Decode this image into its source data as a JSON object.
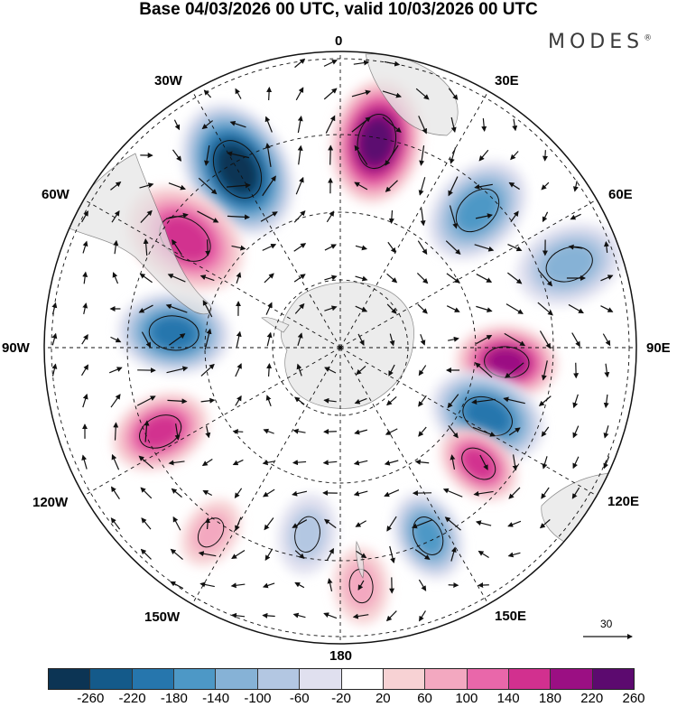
{
  "title": "Base 04/03/2026 00 UTC, valid 10/03/2026 00 UTC",
  "brand": "MODES",
  "brand_mark": "®",
  "map": {
    "projection": "south-polar-stereographic",
    "longitude_labels": {
      "lon_0": "0",
      "lon_30e": "30E",
      "lon_60e": "60E",
      "lon_90e": "90E",
      "lon_120e": "120E",
      "lon_150e": "150E",
      "lon_180": "180",
      "lon_150w": "150W",
      "lon_120w": "120W",
      "lon_90w": "90W",
      "lon_60w": "60W",
      "lon_30w": "30W"
    },
    "wind_scale_label": "30",
    "anomaly_centers": [
      {
        "sign": "neg",
        "value": -280,
        "lon": "30W-20W"
      },
      {
        "sign": "pos",
        "value": 240,
        "lon": "10E"
      },
      {
        "sign": "neg",
        "value": -180,
        "lon": "45E"
      },
      {
        "sign": "neg",
        "value": -120,
        "lon": "70E"
      },
      {
        "sign": "pos",
        "value": 220,
        "lon": "95E"
      },
      {
        "sign": "neg",
        "value": -200,
        "lon": "115E"
      },
      {
        "sign": "pos",
        "value": 160,
        "lon": "130E"
      },
      {
        "sign": "neg",
        "value": -160,
        "lon": "155E"
      },
      {
        "sign": "pos",
        "value": 80,
        "lon": "175E"
      },
      {
        "sign": "neg",
        "value": -80,
        "lon": "170W"
      },
      {
        "sign": "pos",
        "value": 80,
        "lon": "145W"
      },
      {
        "sign": "pos",
        "value": 160,
        "lon": "115W"
      },
      {
        "sign": "neg",
        "value": -200,
        "lon": "85W"
      },
      {
        "sign": "pos",
        "value": 160,
        "lon": "55W"
      }
    ]
  },
  "colorbar": {
    "ticks": [
      "-260",
      "-220",
      "-180",
      "-140",
      "-100",
      "-60",
      "-20",
      "20",
      "60",
      "100",
      "140",
      "180",
      "220",
      "260"
    ],
    "colors": [
      "#0c3454",
      "#145a8a",
      "#2676ad",
      "#4d98c6",
      "#86b2d6",
      "#b3c7e2",
      "#e0e0ef",
      "#ffffff",
      "#f7d2d4",
      "#f3a8c0",
      "#e967aa",
      "#d2308f",
      "#9b0f83",
      "#5c0a6f"
    ]
  }
}
